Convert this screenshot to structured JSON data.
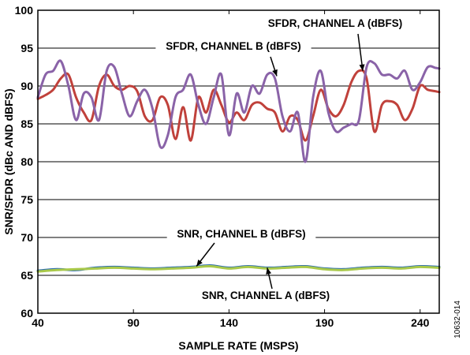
{
  "chart_data": {
    "type": "line",
    "xlabel": "SAMPLE RATE (MSPS)",
    "ylabel": "SNR/SFDR (dBc AND dBFS)",
    "xlim": [
      40,
      250
    ],
    "ylim": [
      60,
      100
    ],
    "x_ticks": [
      "40",
      "90",
      "140",
      "190",
      "240"
    ],
    "y_ticks": [
      "60",
      "65",
      "70",
      "75",
      "80",
      "85",
      "90",
      "95",
      "100"
    ],
    "grid": "horizontal",
    "figure_id": "10632-014",
    "series": [
      {
        "name": "SFDR, CHANNEL A (dBFS)",
        "color": "#c0413b",
        "x": [
          40,
          44,
          48,
          52,
          56,
          60,
          64,
          68,
          72,
          76,
          80,
          84,
          88,
          92,
          96,
          100,
          104,
          108,
          112,
          116,
          120,
          124,
          128,
          132,
          136,
          140,
          144,
          148,
          152,
          156,
          160,
          164,
          168,
          172,
          176,
          180,
          184,
          188,
          192,
          196,
          200,
          204,
          208,
          212,
          216,
          220,
          224,
          228,
          232,
          236,
          240,
          244,
          248,
          250
        ],
        "y": [
          88.3,
          88.8,
          89.5,
          91,
          91.5,
          88.5,
          86.5,
          85.5,
          90,
          91.5,
          90,
          89.5,
          90,
          89.3,
          86,
          85.5,
          88.5,
          87.5,
          83,
          87.2,
          82.8,
          88.5,
          86.5,
          89.5,
          87.5,
          85.2,
          86.5,
          85.5,
          87.5,
          87.8,
          87,
          86.5,
          84,
          86,
          85.5,
          82.8,
          86,
          89.5,
          87,
          86,
          87.5,
          90.5,
          92,
          91,
          84,
          87.5,
          88,
          87.5,
          85.5,
          87,
          90,
          89.5,
          89.3,
          89.2
        ]
      },
      {
        "name": "SFDR, CHANNEL B (dBFS)",
        "color": "#8a63a8",
        "x": [
          40,
          44,
          48,
          52,
          56,
          60,
          64,
          68,
          72,
          76,
          80,
          84,
          88,
          92,
          96,
          100,
          104,
          108,
          112,
          116,
          120,
          124,
          128,
          132,
          136,
          140,
          144,
          148,
          152,
          156,
          160,
          164,
          168,
          172,
          176,
          180,
          184,
          188,
          192,
          196,
          200,
          204,
          208,
          212,
          216,
          220,
          224,
          228,
          232,
          236,
          240,
          244,
          248,
          250
        ],
        "y": [
          88.5,
          91.5,
          92,
          93.3,
          90,
          85.5,
          89,
          88.5,
          85.5,
          92,
          92.5,
          89,
          86,
          88,
          89.5,
          87,
          82,
          83.5,
          88.5,
          89.5,
          91.5,
          87.5,
          85,
          88.5,
          91.5,
          83.5,
          89,
          86.5,
          90,
          89,
          91.5,
          91,
          86,
          84,
          86.5,
          80,
          88.5,
          92,
          86.5,
          84,
          84.5,
          85,
          85.5,
          92.5,
          93,
          91.5,
          91.5,
          91,
          92,
          89.5,
          90.5,
          92.5,
          92.4,
          92.3
        ]
      },
      {
        "name": "SNR, CHANNEL A (dBFS)",
        "color": "#2f6fb0",
        "x": [
          40,
          50,
          60,
          70,
          80,
          90,
          100,
          110,
          120,
          130,
          140,
          150,
          160,
          170,
          180,
          190,
          200,
          210,
          220,
          230,
          240,
          250
        ],
        "y": [
          65.6,
          65.8,
          65.7,
          66.0,
          66.1,
          66.0,
          65.9,
          66.0,
          66.1,
          66.3,
          66.0,
          66.2,
          66.0,
          66.1,
          66.2,
          65.9,
          65.8,
          66.0,
          66.1,
          66.0,
          66.2,
          66.1
        ]
      },
      {
        "name": "SNR, CHANNEL B (dBFS)",
        "color": "#a9c94a",
        "x": [
          40,
          50,
          60,
          70,
          80,
          90,
          100,
          110,
          120,
          130,
          140,
          150,
          160,
          170,
          180,
          190,
          200,
          210,
          220,
          230,
          240,
          250
        ],
        "y": [
          65.5,
          65.7,
          65.8,
          65.9,
          66.0,
          65.9,
          65.8,
          65.9,
          66.0,
          66.2,
          65.9,
          66.1,
          65.9,
          66.0,
          66.1,
          65.8,
          65.7,
          65.9,
          66.0,
          65.9,
          66.1,
          66.0
        ]
      }
    ],
    "annotations": [
      {
        "text": "SFDR, CHANNEL A (dBFS)",
        "target": [
          210,
          92
        ]
      },
      {
        "text": "SFDR, CHANNEL B (dBFS)",
        "target": [
          165,
          91.3
        ]
      },
      {
        "text": "SNR, CHANNEL B (dBFS)",
        "target": [
          123,
          66.2
        ]
      },
      {
        "text": "SNR, CHANNEL A (dBFS)",
        "target": [
          160,
          66.0
        ]
      }
    ]
  }
}
